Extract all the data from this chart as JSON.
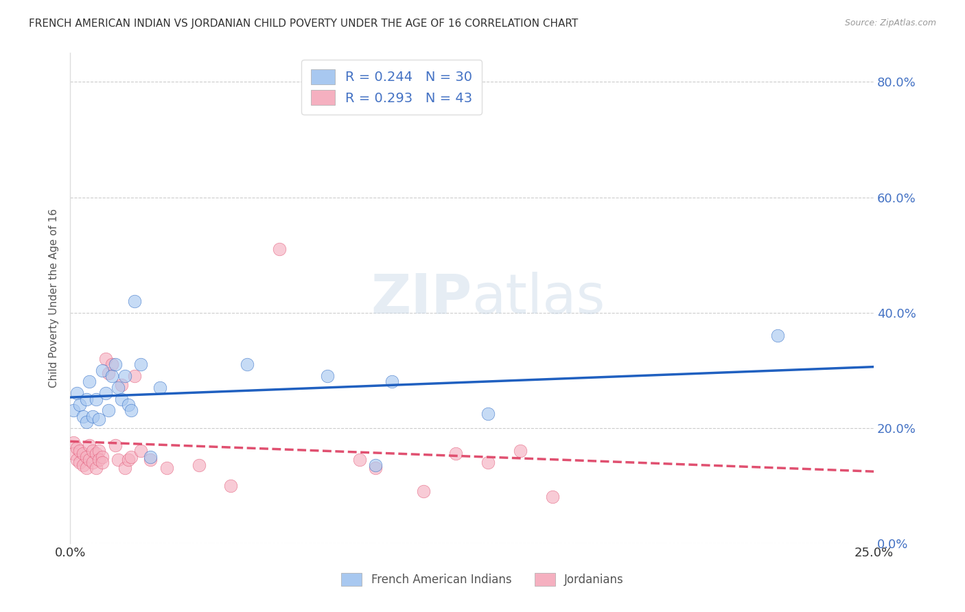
{
  "title": "FRENCH AMERICAN INDIAN VS JORDANIAN CHILD POVERTY UNDER THE AGE OF 16 CORRELATION CHART",
  "source": "Source: ZipAtlas.com",
  "ylabel": "Child Poverty Under the Age of 16",
  "xlabel": "",
  "xlim": [
    0,
    0.25
  ],
  "ylim": [
    0,
    0.85
  ],
  "xticks": [
    0.0,
    0.05,
    0.1,
    0.15,
    0.2,
    0.25
  ],
  "yticks": [
    0.0,
    0.2,
    0.4,
    0.6,
    0.8
  ],
  "ytick_labels_right": [
    "0.0%",
    "20.0%",
    "40.0%",
    "60.0%",
    "80.0%"
  ],
  "xtick_labels": [
    "0.0%",
    "",
    "",
    "",
    "",
    "25.0%"
  ],
  "legend_label1": "French American Indians",
  "legend_label2": "Jordanians",
  "watermark": "ZIPatlas",
  "blue_color": "#A8C8F0",
  "pink_color": "#F5B0C0",
  "blue_line_color": "#2060C0",
  "pink_line_color": "#E05070",
  "background_color": "#FFFFFF",
  "title_color": "#333333",
  "right_axis_color": "#4472C4",
  "french_x": [
    0.001,
    0.002,
    0.003,
    0.004,
    0.005,
    0.005,
    0.006,
    0.007,
    0.008,
    0.009,
    0.01,
    0.011,
    0.012,
    0.013,
    0.014,
    0.015,
    0.016,
    0.017,
    0.018,
    0.019,
    0.02,
    0.022,
    0.025,
    0.028,
    0.055,
    0.08,
    0.095,
    0.1,
    0.13,
    0.22
  ],
  "french_y": [
    0.23,
    0.26,
    0.24,
    0.22,
    0.25,
    0.21,
    0.28,
    0.22,
    0.25,
    0.215,
    0.3,
    0.26,
    0.23,
    0.29,
    0.31,
    0.27,
    0.25,
    0.29,
    0.24,
    0.23,
    0.42,
    0.31,
    0.15,
    0.27,
    0.31,
    0.29,
    0.135,
    0.28,
    0.225,
    0.36
  ],
  "jordan_x": [
    0.001,
    0.001,
    0.002,
    0.002,
    0.003,
    0.003,
    0.004,
    0.004,
    0.005,
    0.005,
    0.006,
    0.006,
    0.007,
    0.007,
    0.008,
    0.008,
    0.009,
    0.009,
    0.01,
    0.01,
    0.011,
    0.012,
    0.013,
    0.014,
    0.015,
    0.016,
    0.017,
    0.018,
    0.019,
    0.02,
    0.022,
    0.025,
    0.03,
    0.04,
    0.05,
    0.065,
    0.09,
    0.095,
    0.11,
    0.12,
    0.13,
    0.14,
    0.15
  ],
  "jordan_y": [
    0.175,
    0.155,
    0.165,
    0.145,
    0.16,
    0.14,
    0.155,
    0.135,
    0.15,
    0.13,
    0.17,
    0.145,
    0.16,
    0.14,
    0.155,
    0.13,
    0.16,
    0.145,
    0.15,
    0.14,
    0.32,
    0.295,
    0.31,
    0.17,
    0.145,
    0.275,
    0.13,
    0.145,
    0.15,
    0.29,
    0.16,
    0.145,
    0.13,
    0.135,
    0.1,
    0.51,
    0.145,
    0.13,
    0.09,
    0.155,
    0.14,
    0.16,
    0.08
  ]
}
